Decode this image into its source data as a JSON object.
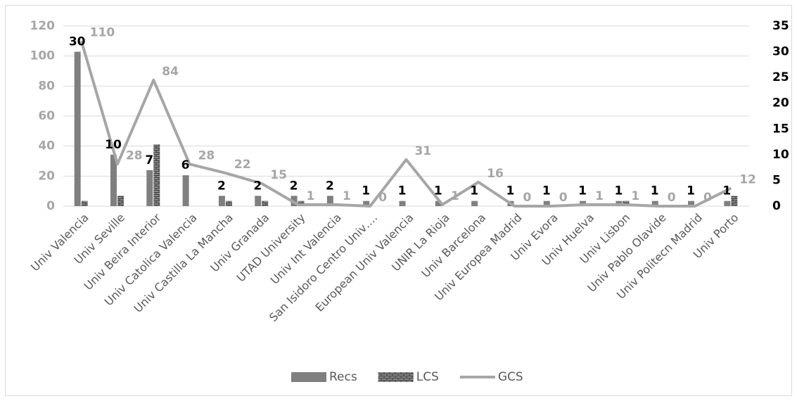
{
  "chart_data": {
    "type": "bar-line",
    "categories": [
      "Univ Valencia",
      "Univ Seville",
      "Univ Beira Interior",
      "Univ Catolica Valencia",
      "Univ Castilla La Mancha",
      "Univ Granada",
      "UTAD University",
      "Univ Int Valencia",
      "San Isidoro Centro Univ….",
      "European Univ Valencia",
      "UNIR La Rioja",
      "Univ Barcelona",
      "Univ Europea Madrid",
      "Univ Evora",
      "Univ Huelva",
      "Univ Lisbon",
      "Univ Pablo Olavide",
      "Univ Politecn Madrid",
      "Univ Porto"
    ],
    "series": [
      {
        "name": "Recs",
        "kind": "bar",
        "axis": "y2",
        "color": "#7f7f7f",
        "values": [
          30,
          10,
          7,
          6,
          2,
          2,
          2,
          2,
          1,
          1,
          1,
          1,
          1,
          1,
          1,
          1,
          1,
          1,
          1
        ]
      },
      {
        "name": "LCS",
        "kind": "bar",
        "axis": "y2",
        "color": "#6f6f6f",
        "values": [
          1,
          2,
          12,
          0,
          1,
          1,
          1,
          0,
          0,
          0,
          0,
          0,
          0,
          0,
          0,
          1,
          0,
          0,
          2
        ]
      },
      {
        "name": "GCS",
        "kind": "line",
        "axis": "y",
        "color": "#a6a6a6",
        "values": [
          110,
          28,
          84,
          28,
          22,
          15,
          1,
          1,
          0,
          31,
          1,
          16,
          0,
          0,
          1,
          1,
          0,
          0,
          12
        ]
      }
    ],
    "ylim": [
      0,
      120
    ],
    "yticks": [
      0,
      20,
      40,
      60,
      80,
      100,
      120
    ],
    "y2lim": [
      0,
      35
    ],
    "y2ticks": [
      0,
      5,
      10,
      15,
      20,
      25,
      30,
      35
    ],
    "grid": true,
    "legend": "bottom"
  }
}
